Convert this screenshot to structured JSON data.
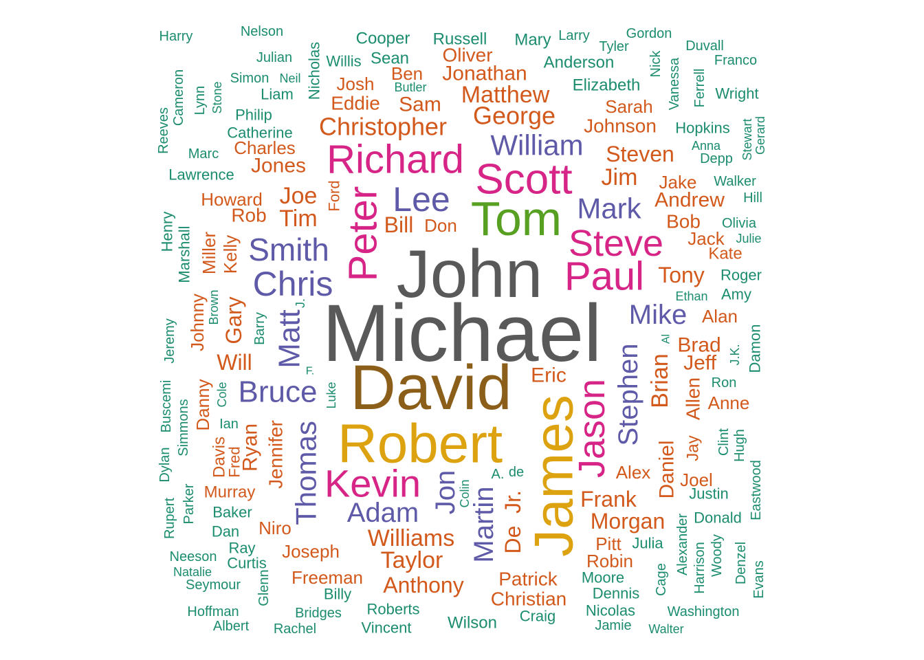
{
  "palette": {
    "grey": "#595959",
    "brown": "#8B5F1A",
    "gold": "#DDA20F",
    "magenta": "#D62586",
    "green": "#57A022",
    "purple": "#5F5AA8",
    "orange": "#D2591B",
    "teal": "#1B8C6E"
  },
  "words": [
    {
      "text": "Michael",
      "color": "grey"
    },
    {
      "text": "John",
      "color": "grey"
    },
    {
      "text": "David",
      "color": "brown"
    },
    {
      "text": "Robert",
      "color": "gold"
    },
    {
      "text": "James",
      "color": "gold"
    },
    {
      "text": "Tom",
      "color": "green"
    },
    {
      "text": "Scott",
      "color": "magenta"
    },
    {
      "text": "Richard",
      "color": "magenta"
    },
    {
      "text": "Peter",
      "color": "magenta"
    },
    {
      "text": "Paul",
      "color": "magenta"
    },
    {
      "text": "Steve",
      "color": "magenta"
    },
    {
      "text": "Kevin",
      "color": "magenta"
    },
    {
      "text": "Jason",
      "color": "magenta"
    },
    {
      "text": "Lee",
      "color": "purple"
    },
    {
      "text": "Smith",
      "color": "purple"
    },
    {
      "text": "Chris",
      "color": "purple"
    },
    {
      "text": "Mark",
      "color": "purple"
    },
    {
      "text": "William",
      "color": "purple"
    },
    {
      "text": "Bruce",
      "color": "purple"
    },
    {
      "text": "Mike",
      "color": "purple"
    },
    {
      "text": "Matt",
      "color": "purple"
    },
    {
      "text": "Stephen",
      "color": "purple"
    },
    {
      "text": "Adam",
      "color": "purple"
    },
    {
      "text": "Thomas",
      "color": "purple"
    },
    {
      "text": "Jon",
      "color": "purple"
    },
    {
      "text": "Martin",
      "color": "purple"
    },
    {
      "text": "Christopher",
      "color": "orange"
    },
    {
      "text": "Matthew",
      "color": "orange"
    },
    {
      "text": "George",
      "color": "orange"
    },
    {
      "text": "Jonathan",
      "color": "orange"
    },
    {
      "text": "Oliver",
      "color": "orange"
    },
    {
      "text": "Ben",
      "color": "orange"
    },
    {
      "text": "Sam",
      "color": "orange"
    },
    {
      "text": "Josh",
      "color": "orange"
    },
    {
      "text": "Eddie",
      "color": "orange"
    },
    {
      "text": "Charles",
      "color": "orange"
    },
    {
      "text": "Jones",
      "color": "orange"
    },
    {
      "text": "Howard",
      "color": "orange"
    },
    {
      "text": "Joe",
      "color": "orange"
    },
    {
      "text": "Rob",
      "color": "orange"
    },
    {
      "text": "Tim",
      "color": "orange"
    },
    {
      "text": "Bill",
      "color": "orange"
    },
    {
      "text": "Don",
      "color": "orange"
    },
    {
      "text": "Ford",
      "color": "orange"
    },
    {
      "text": "Sarah",
      "color": "orange"
    },
    {
      "text": "Johnson",
      "color": "orange"
    },
    {
      "text": "Steven",
      "color": "orange"
    },
    {
      "text": "Jim",
      "color": "orange"
    },
    {
      "text": "Jake",
      "color": "orange"
    },
    {
      "text": "Andrew",
      "color": "orange"
    },
    {
      "text": "Bob",
      "color": "orange"
    },
    {
      "text": "Jack",
      "color": "orange"
    },
    {
      "text": "Kate",
      "color": "orange"
    },
    {
      "text": "Tony",
      "color": "orange"
    },
    {
      "text": "Alan",
      "color": "orange"
    },
    {
      "text": "Brad",
      "color": "orange"
    },
    {
      "text": "Jeff",
      "color": "orange"
    },
    {
      "text": "Brian",
      "color": "orange"
    },
    {
      "text": "Eric",
      "color": "orange"
    },
    {
      "text": "Anne",
      "color": "orange"
    },
    {
      "text": "Allen",
      "color": "orange"
    },
    {
      "text": "Jay",
      "color": "orange"
    },
    {
      "text": "Daniel",
      "color": "orange"
    },
    {
      "text": "Alex",
      "color": "orange"
    },
    {
      "text": "Joel",
      "color": "orange"
    },
    {
      "text": "Frank",
      "color": "orange"
    },
    {
      "text": "Morgan",
      "color": "orange"
    },
    {
      "text": "Pitt",
      "color": "orange"
    },
    {
      "text": "Robin",
      "color": "orange"
    },
    {
      "text": "Williams",
      "color": "orange"
    },
    {
      "text": "Taylor",
      "color": "orange"
    },
    {
      "text": "Anthony",
      "color": "orange"
    },
    {
      "text": "Patrick",
      "color": "orange"
    },
    {
      "text": "Christian",
      "color": "orange"
    },
    {
      "text": "De",
      "color": "orange"
    },
    {
      "text": "Jr.",
      "color": "orange"
    },
    {
      "text": "Joseph",
      "color": "orange"
    },
    {
      "text": "Freeman",
      "color": "orange"
    },
    {
      "text": "Niro",
      "color": "orange"
    },
    {
      "text": "Murray",
      "color": "orange"
    },
    {
      "text": "Jennifer",
      "color": "orange"
    },
    {
      "text": "Ryan",
      "color": "orange"
    },
    {
      "text": "Will",
      "color": "orange"
    },
    {
      "text": "Gary",
      "color": "orange"
    },
    {
      "text": "Kelly",
      "color": "orange"
    },
    {
      "text": "Miller",
      "color": "orange"
    },
    {
      "text": "Johnny",
      "color": "orange"
    },
    {
      "text": "Danny",
      "color": "orange"
    },
    {
      "text": "Davis",
      "color": "orange"
    },
    {
      "text": "Fred",
      "color": "orange"
    },
    {
      "text": "Harry",
      "color": "teal"
    },
    {
      "text": "Nelson",
      "color": "teal"
    },
    {
      "text": "Julian",
      "color": "teal"
    },
    {
      "text": "Nicholas",
      "color": "teal"
    },
    {
      "text": "Cooper",
      "color": "teal"
    },
    {
      "text": "Willis",
      "color": "teal"
    },
    {
      "text": "Sean",
      "color": "teal"
    },
    {
      "text": "Russell",
      "color": "teal"
    },
    {
      "text": "Mary",
      "color": "teal"
    },
    {
      "text": "Larry",
      "color": "teal"
    },
    {
      "text": "Tyler",
      "color": "teal"
    },
    {
      "text": "Gordon",
      "color": "teal"
    },
    {
      "text": "Duvall",
      "color": "teal"
    },
    {
      "text": "Franco",
      "color": "teal"
    },
    {
      "text": "Anderson",
      "color": "teal"
    },
    {
      "text": "Nick",
      "color": "teal"
    },
    {
      "text": "Simon",
      "color": "teal"
    },
    {
      "text": "Neil",
      "color": "teal"
    },
    {
      "text": "Liam",
      "color": "teal"
    },
    {
      "text": "Butler",
      "color": "teal"
    },
    {
      "text": "Elizabeth",
      "color": "teal"
    },
    {
      "text": "Vanessa",
      "color": "teal"
    },
    {
      "text": "Ferrell",
      "color": "teal"
    },
    {
      "text": "Wright",
      "color": "teal"
    },
    {
      "text": "Cameron",
      "color": "teal"
    },
    {
      "text": "Lynn",
      "color": "teal"
    },
    {
      "text": "Stone",
      "color": "teal"
    },
    {
      "text": "Philip",
      "color": "teal"
    },
    {
      "text": "Reeves",
      "color": "teal"
    },
    {
      "text": "Catherine",
      "color": "teal"
    },
    {
      "text": "Hopkins",
      "color": "teal"
    },
    {
      "text": "Stewart",
      "color": "teal"
    },
    {
      "text": "Gerard",
      "color": "teal"
    },
    {
      "text": "Marc",
      "color": "teal"
    },
    {
      "text": "Anna",
      "color": "teal"
    },
    {
      "text": "Depp",
      "color": "teal"
    },
    {
      "text": "Lawrence",
      "color": "teal"
    },
    {
      "text": "Walker",
      "color": "teal"
    },
    {
      "text": "Hill",
      "color": "teal"
    },
    {
      "text": "Olivia",
      "color": "teal"
    },
    {
      "text": "Julie",
      "color": "teal"
    },
    {
      "text": "Henry",
      "color": "teal"
    },
    {
      "text": "Marshall",
      "color": "teal"
    },
    {
      "text": "Roger",
      "color": "teal"
    },
    {
      "text": "Ethan",
      "color": "teal"
    },
    {
      "text": "Amy",
      "color": "teal"
    },
    {
      "text": "J.",
      "color": "teal"
    },
    {
      "text": "Brown",
      "color": "teal"
    },
    {
      "text": "Barry",
      "color": "teal"
    },
    {
      "text": "Al",
      "color": "teal"
    },
    {
      "text": "J.K.",
      "color": "teal"
    },
    {
      "text": "Damon",
      "color": "teal"
    },
    {
      "text": "Ron",
      "color": "teal"
    },
    {
      "text": "Jeremy",
      "color": "teal"
    },
    {
      "text": "F.",
      "color": "teal"
    },
    {
      "text": "Luke",
      "color": "teal"
    },
    {
      "text": "Cole",
      "color": "teal"
    },
    {
      "text": "Buscemi",
      "color": "teal"
    },
    {
      "text": "Simmons",
      "color": "teal"
    },
    {
      "text": "Ian",
      "color": "teal"
    },
    {
      "text": "Clint",
      "color": "teal"
    },
    {
      "text": "Hugh",
      "color": "teal"
    },
    {
      "text": "Dylan",
      "color": "teal"
    },
    {
      "text": "A.",
      "color": "teal"
    },
    {
      "text": "de",
      "color": "teal"
    },
    {
      "text": "Colin",
      "color": "teal"
    },
    {
      "text": "Eastwood",
      "color": "teal"
    },
    {
      "text": "Justin",
      "color": "teal"
    },
    {
      "text": "Parker",
      "color": "teal"
    },
    {
      "text": "Rupert",
      "color": "teal"
    },
    {
      "text": "Baker",
      "color": "teal"
    },
    {
      "text": "Donald",
      "color": "teal"
    },
    {
      "text": "Dan",
      "color": "teal"
    },
    {
      "text": "Alexander",
      "color": "teal"
    },
    {
      "text": "Julia",
      "color": "teal"
    },
    {
      "text": "Ray",
      "color": "teal"
    },
    {
      "text": "Neeson",
      "color": "teal"
    },
    {
      "text": "Curtis",
      "color": "teal"
    },
    {
      "text": "Natalie",
      "color": "teal"
    },
    {
      "text": "Seymour",
      "color": "teal"
    },
    {
      "text": "Glenn",
      "color": "teal"
    },
    {
      "text": "Billy",
      "color": "teal"
    },
    {
      "text": "Moore",
      "color": "teal"
    },
    {
      "text": "Cage",
      "color": "teal"
    },
    {
      "text": "Harrison",
      "color": "teal"
    },
    {
      "text": "Woody",
      "color": "teal"
    },
    {
      "text": "Denzel",
      "color": "teal"
    },
    {
      "text": "Evans",
      "color": "teal"
    },
    {
      "text": "Dennis",
      "color": "teal"
    },
    {
      "text": "Hoffman",
      "color": "teal"
    },
    {
      "text": "Bridges",
      "color": "teal"
    },
    {
      "text": "Roberts",
      "color": "teal"
    },
    {
      "text": "Nicolas",
      "color": "teal"
    },
    {
      "text": "Washington",
      "color": "teal"
    },
    {
      "text": "Albert",
      "color": "teal"
    },
    {
      "text": "Rachel",
      "color": "teal"
    },
    {
      "text": "Vincent",
      "color": "teal"
    },
    {
      "text": "Wilson",
      "color": "teal"
    },
    {
      "text": "Craig",
      "color": "teal"
    },
    {
      "text": "Jamie",
      "color": "teal"
    },
    {
      "text": "Walter",
      "color": "teal"
    }
  ]
}
